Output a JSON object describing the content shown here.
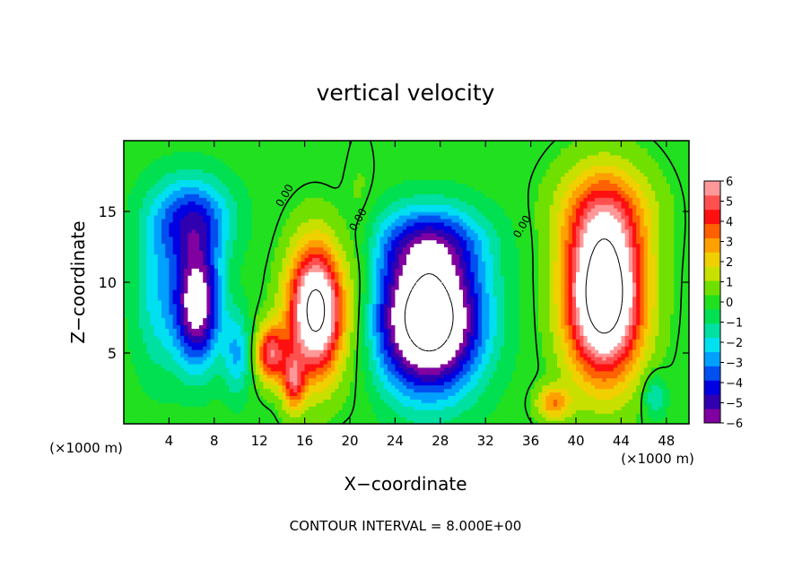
{
  "chart_data": {
    "type": "heatmap",
    "title": "vertical velocity",
    "xlabel": "X−coordinate",
    "ylabel": "Z−coordinate",
    "x_unit_left": "(×1000 m)",
    "x_unit_right": "(×1000 m)",
    "footer": "CONTOUR INTERVAL = 8.000E+00",
    "xlim": [
      0,
      50
    ],
    "ylim": [
      0,
      20
    ],
    "x_ticks": [
      4,
      8,
      12,
      16,
      20,
      24,
      28,
      32,
      36,
      40,
      44,
      48
    ],
    "x_tick_labels": [
      "4",
      "8",
      "12",
      "16",
      "20",
      "24",
      "28",
      "32",
      "36",
      "40",
      "44",
      "48"
    ],
    "y_ticks": [
      5,
      10,
      15
    ],
    "y_tick_labels": [
      "5",
      "10",
      "15"
    ],
    "colorbar": {
      "min": -6,
      "max": 6,
      "tick_values": [
        6,
        5,
        4,
        3,
        2,
        1,
        0,
        -1,
        -2,
        -3,
        -4,
        -5,
        -6
      ],
      "tick_labels": [
        "6",
        "5",
        "4",
        "3",
        "2",
        "1",
        "0",
        "−1",
        "−2",
        "−3",
        "−4",
        "−5",
        "−6"
      ],
      "colors": [
        "#8000a0",
        "#3000b0",
        "#0000e0",
        "#0050f0",
        "#00a0ff",
        "#00e0f0",
        "#00e0a0",
        "#00e050",
        "#20e020",
        "#70e000",
        "#c8e000",
        "#f0d000",
        "#ffa000",
        "#ff6000",
        "#ff1010",
        "#ff5050",
        "#ff9999"
      ]
    },
    "contour_labels": [
      {
        "text": "0.00",
        "x": 14.5,
        "z": 16.0
      },
      {
        "text": "0.00",
        "x": 21.0,
        "z": 14.3
      },
      {
        "text": "0.00",
        "x": 35.5,
        "z": 13.8
      }
    ],
    "cells": [
      {
        "x": 6.5,
        "z": 8.5,
        "w": -7.0,
        "sx": 2.0,
        "sz": 4.2
      },
      {
        "x": 6.0,
        "z": 14.5,
        "w": -4.0,
        "sx": 3.5,
        "sz": 3.0
      },
      {
        "x": 3.0,
        "z": 9.0,
        "w": -2.0,
        "sx": 2.2,
        "sz": 5.5
      },
      {
        "x": 10.0,
        "z": 5.0,
        "w": -2.5,
        "sx": 1.2,
        "sz": 3.0
      },
      {
        "x": 17.0,
        "z": 8.0,
        "w": 9.0,
        "sx": 2.4,
        "sz": 4.5
      },
      {
        "x": 13.0,
        "z": 5.0,
        "w": 5.0,
        "sx": 1.3,
        "sz": 2.0
      },
      {
        "x": 15.0,
        "z": 3.0,
        "w": 4.0,
        "sx": 1.0,
        "sz": 2.0
      },
      {
        "x": 27.0,
        "z": 7.5,
        "w": -10.0,
        "sx": 4.5,
        "sz": 5.0
      },
      {
        "x": 27.0,
        "z": 13.0,
        "w": -3.0,
        "sx": 5.0,
        "sz": 2.5
      },
      {
        "x": 42.5,
        "z": 9.0,
        "w": 10.0,
        "sx": 3.3,
        "sz": 5.5
      },
      {
        "x": 42.5,
        "z": 15.0,
        "w": 3.0,
        "sx": 4.0,
        "sz": 3.5
      },
      {
        "x": 38.0,
        "z": 1.5,
        "w": 3.0,
        "sx": 1.5,
        "sz": 1.2
      },
      {
        "x": 47.0,
        "z": 2.0,
        "w": -2.0,
        "sx": 1.0,
        "sz": 1.5
      },
      {
        "x": 21.0,
        "z": 10.0,
        "w": 1.0,
        "sx": 1.5,
        "sz": 8.0
      }
    ]
  }
}
